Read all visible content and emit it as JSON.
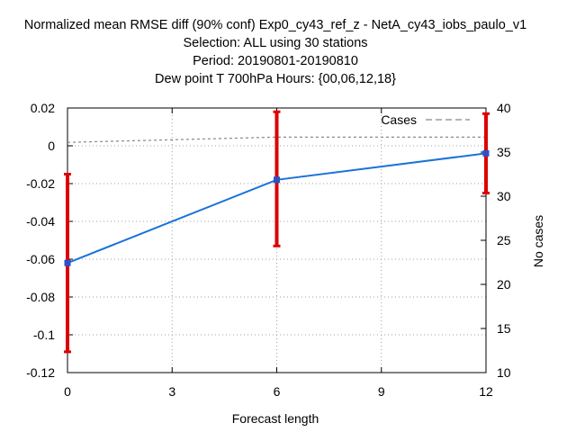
{
  "chart_data": {
    "type": "line",
    "title_lines": [
      "Normalized mean RMSE diff (90% conf) Exp0_cy43_ref_z - NetA_cy43_iobs_paulo_v1",
      "Selection: ALL using    30 stations",
      "Period: 20190801-20190810",
      "Dew point T 700hPa   Hours: {00,06,12,18}"
    ],
    "xlabel": "Forecast length",
    "ylabel": "",
    "y2label": "No cases",
    "xlim": [
      0,
      12
    ],
    "ylim": [
      -0.12,
      0.02
    ],
    "y2lim": [
      10,
      40
    ],
    "xticks": [
      0,
      3,
      6,
      9,
      12
    ],
    "xtick_labels": [
      "0",
      "3",
      "6",
      "9",
      "12"
    ],
    "yticks": [
      -0.12,
      -0.1,
      -0.08,
      -0.06,
      -0.04,
      -0.02,
      0,
      0.02
    ],
    "ytick_labels": [
      "-0.12",
      "-0.1",
      "-0.08",
      "-0.06",
      "-0.04",
      "-0.02",
      "0",
      "0.02"
    ],
    "y2ticks": [
      10,
      15,
      20,
      25,
      30,
      35,
      40
    ],
    "y2tick_labels": [
      "10",
      "15",
      "20",
      "25",
      "30",
      "35",
      "40"
    ],
    "grid": true,
    "legend_position": "top-right",
    "series": [
      {
        "kind": "line-errorbar",
        "axis": "left",
        "color": "#1a73d9",
        "marker_color": "#2a52c8",
        "x": [
          0,
          6,
          12
        ],
        "y": [
          -0.062,
          -0.018,
          -0.004
        ],
        "err_low": [
          -0.109,
          -0.053,
          -0.025
        ],
        "err_high": [
          -0.015,
          0.018,
          0.017
        ],
        "errorbar_color": "#dd0000"
      },
      {
        "name": "Cases",
        "kind": "dashed",
        "axis": "right",
        "color": "#888888",
        "x": [
          0,
          6,
          12
        ],
        "y": [
          36.1,
          36.7,
          36.7
        ]
      }
    ]
  }
}
